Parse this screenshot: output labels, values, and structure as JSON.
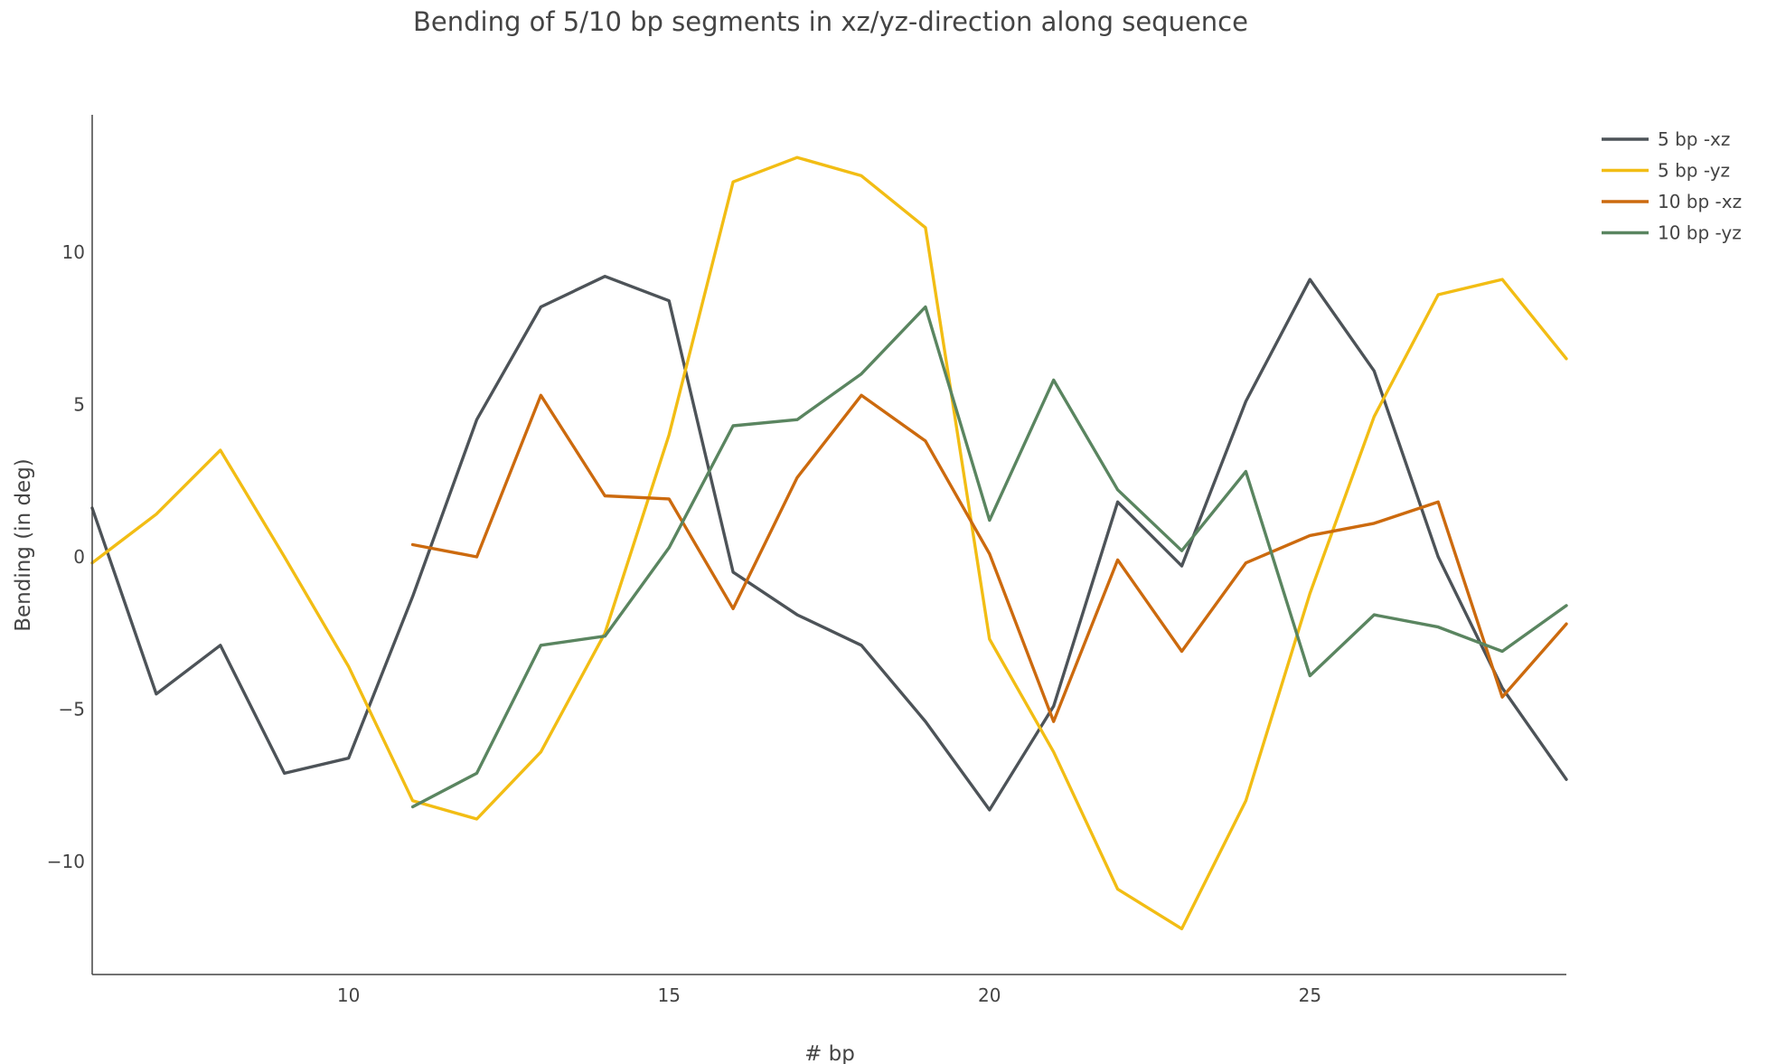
{
  "chart_data": {
    "type": "line",
    "title": "Bending of 5/10 bp segments in xz/yz-direction along sequence",
    "xlabel": "# bp",
    "ylabel": "Bending (in deg)",
    "xlim": [
      6,
      29
    ],
    "ylim": [
      -13.7,
      14.5
    ],
    "xticks": [
      10,
      15,
      20,
      25
    ],
    "xtick_labels": [
      "10",
      "15",
      "20",
      "25"
    ],
    "yticks": [
      -10,
      -5,
      0,
      5,
      10
    ],
    "ytick_labels": [
      "−10",
      "−5",
      "0",
      "5",
      "10"
    ],
    "legend_position": "top-right",
    "series": [
      {
        "name": "5 bp -xz",
        "color": "#4d5358",
        "x": [
          6,
          7,
          8,
          9,
          10,
          11,
          12,
          13,
          14,
          15,
          16,
          17,
          18,
          19,
          20,
          21,
          22,
          23,
          24,
          25,
          26,
          27,
          28,
          29
        ],
        "y": [
          1.6,
          -4.5,
          -2.9,
          -7.1,
          -6.6,
          -1.3,
          4.5,
          8.2,
          9.2,
          8.4,
          -0.5,
          -1.9,
          -2.9,
          -5.4,
          -8.3,
          -4.9,
          1.8,
          -0.3,
          5.1,
          9.1,
          6.1,
          0.0,
          -4.3,
          -7.3
        ]
      },
      {
        "name": "5 bp -yz",
        "color": "#f2bd14",
        "x": [
          6,
          7,
          8,
          9,
          10,
          11,
          12,
          13,
          14,
          15,
          16,
          17,
          18,
          19,
          20,
          21,
          22,
          23,
          24,
          25,
          26,
          27,
          28,
          29
        ],
        "y": [
          -0.2,
          1.4,
          3.5,
          0.0,
          -3.6,
          -8.0,
          -8.6,
          -6.4,
          -2.5,
          4.0,
          12.3,
          13.1,
          12.5,
          10.8,
          -2.7,
          -6.4,
          -10.9,
          -12.2,
          -8.0,
          -1.2,
          4.6,
          8.6,
          9.1,
          6.5
        ]
      },
      {
        "name": "10 bp -xz",
        "color": "#cc6a0e",
        "x": [
          11,
          12,
          13,
          14,
          15,
          16,
          17,
          18,
          19,
          20,
          21,
          22,
          23,
          24,
          25,
          26,
          27,
          28,
          29
        ],
        "y": [
          0.4,
          0.0,
          5.3,
          2.0,
          1.9,
          -1.7,
          2.6,
          5.3,
          3.8,
          0.1,
          -5.4,
          -0.1,
          -3.1,
          -0.2,
          0.7,
          1.1,
          1.8,
          -4.6,
          -2.2
        ]
      },
      {
        "name": "10 bp -yz",
        "color": "#5a8560",
        "x": [
          11,
          12,
          13,
          14,
          15,
          16,
          17,
          18,
          19,
          20,
          21,
          22,
          23,
          24,
          25,
          26,
          27,
          28,
          29
        ],
        "y": [
          -8.2,
          -7.1,
          -2.9,
          -2.6,
          0.3,
          4.3,
          4.5,
          6.0,
          8.2,
          1.2,
          5.8,
          2.2,
          0.2,
          2.8,
          -3.9,
          -1.9,
          -2.3,
          -3.1,
          -1.6
        ]
      }
    ]
  }
}
